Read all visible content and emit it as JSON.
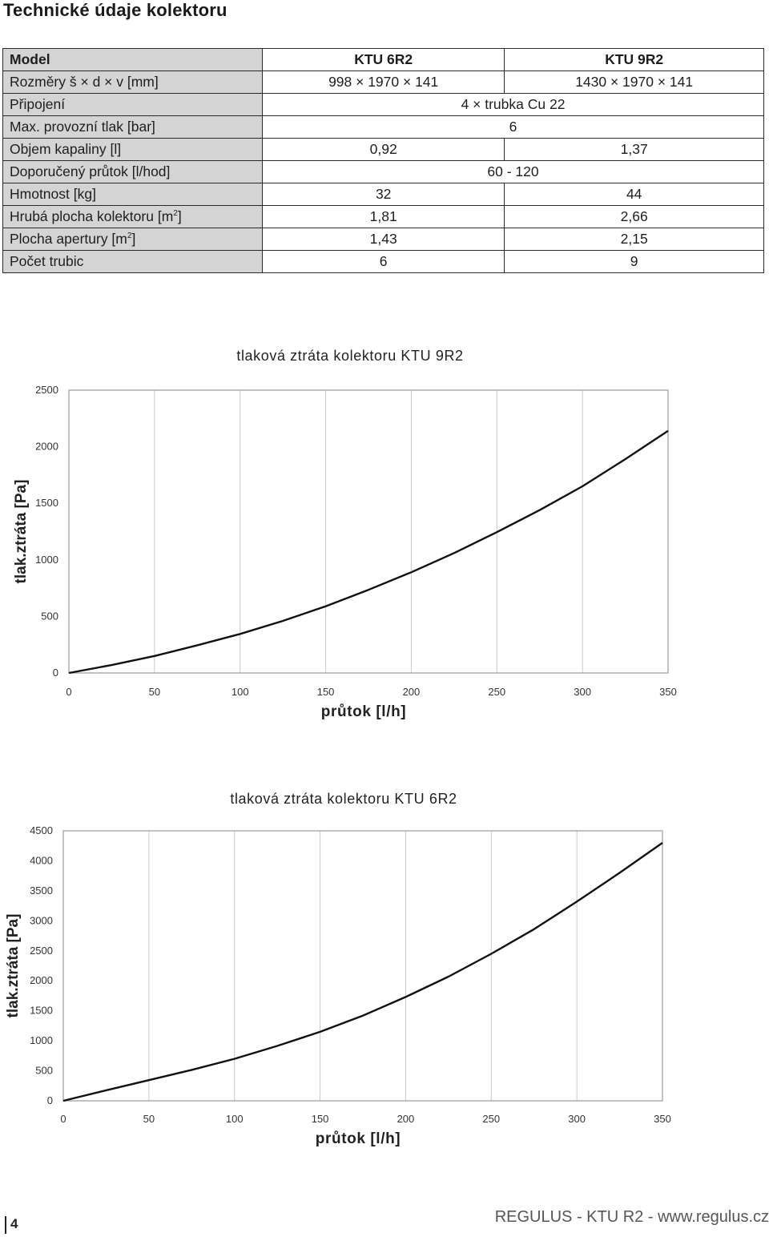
{
  "page": {
    "title": "Technické údaje kolektoru",
    "page_number": "4",
    "footer": "REGULUS - KTU R2 - www.regulus.cz"
  },
  "spec_table": {
    "header": {
      "label": "Model",
      "col1": "KTU 6R2",
      "col2": "KTU 9R2"
    },
    "rows": [
      {
        "label": "Rozměry š × d × v [mm]",
        "col1": "998 × 1970 × 141",
        "col2": "1430 × 1970 × 141"
      },
      {
        "label": "Připojení",
        "merged": "4 × trubka Cu 22"
      },
      {
        "label": "Max. provozní tlak [bar]",
        "merged": "6"
      },
      {
        "label": "Objem kapaliny [l]",
        "col1": "0,92",
        "col2": "1,37"
      },
      {
        "label": "Doporučený průtok [l/hod]",
        "merged": "60 - 120"
      },
      {
        "label": "Hmotnost [kg]",
        "col1": "32",
        "col2": "44"
      },
      {
        "label_pre": "Hrubá plocha kolektoru [m",
        "label_sup": "2",
        "label_post": "]",
        "col1": "1,81",
        "col2": "2,66"
      },
      {
        "label_pre": "Plocha apertury [m",
        "label_sup": "2",
        "label_post": "]",
        "col1": "1,43",
        "col2": "2,15"
      },
      {
        "label": "Počet trubic",
        "col1": "6",
        "col2": "9"
      }
    ]
  },
  "chart_data": [
    {
      "type": "line",
      "title": "tlaková ztráta kolektoru KTU 9R2",
      "xlabel": "průtok [l/h]",
      "ylabel": "tlak.ztráta [Pa]",
      "xlim": [
        0,
        350
      ],
      "ylim": [
        0,
        2500
      ],
      "xticks": [
        "0",
        "50",
        "100",
        "150",
        "200",
        "250",
        "300",
        "350"
      ],
      "yticks": [
        "0",
        "500",
        "1000",
        "1500",
        "2000",
        "2500"
      ],
      "grid": true,
      "series": [
        {
          "x": [
            0,
            25,
            50,
            75,
            100,
            125,
            150,
            175,
            200,
            225,
            250,
            275,
            300,
            325,
            350
          ],
          "values": [
            0,
            70,
            150,
            245,
            345,
            460,
            590,
            735,
            890,
            1060,
            1245,
            1440,
            1650,
            1890,
            2140
          ]
        }
      ]
    },
    {
      "type": "line",
      "title": "tlaková ztráta kolektoru KTU 6R2",
      "xlabel": "průtok [l/h]",
      "ylabel": "tlak.ztráta [Pa]",
      "xlim": [
        0,
        350
      ],
      "ylim": [
        0,
        4500
      ],
      "xticks": [
        "0",
        "50",
        "100",
        "150",
        "200",
        "250",
        "300",
        "350"
      ],
      "yticks": [
        "0",
        "500",
        "1000",
        "1500",
        "2000",
        "2500",
        "3000",
        "3500",
        "4000",
        "4500"
      ],
      "grid": true,
      "series": [
        {
          "x": [
            0,
            25,
            50,
            75,
            100,
            125,
            150,
            175,
            200,
            225,
            250,
            275,
            300,
            325,
            350
          ],
          "values": [
            0,
            175,
            345,
            515,
            700,
            915,
            1150,
            1420,
            1730,
            2070,
            2450,
            2860,
            3320,
            3800,
            4300
          ]
        }
      ]
    }
  ]
}
